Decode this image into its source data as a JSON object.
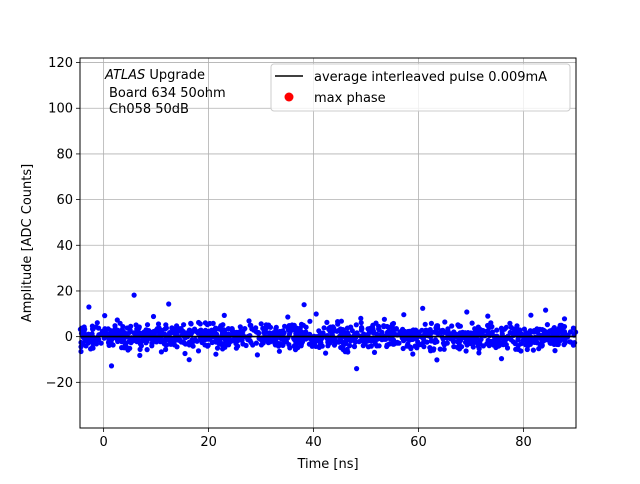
{
  "chart_data": {
    "type": "scatter",
    "title": "",
    "xlabel": "Time [ns]",
    "ylabel": "Amplitude [ADC Counts]",
    "xlim": [
      -4.5,
      90
    ],
    "ylim": [
      -40,
      122
    ],
    "xticks": [
      0,
      20,
      40,
      60,
      80
    ],
    "yticks": [
      -20,
      0,
      20,
      40,
      60,
      80,
      100,
      120
    ],
    "grid": true,
    "legend_position": "top-right",
    "annotation": {
      "italic": "ATLAS",
      "line1_rest": " Upgrade",
      "line2": "Board 634 50ohm",
      "line3": "Ch058 50dB"
    },
    "series": [
      {
        "name": "average interleaved pulse 0.009mA",
        "kind": "line",
        "color": "#000000",
        "x": [
          -4.5,
          0,
          10,
          20,
          30,
          40,
          50,
          60,
          70,
          80,
          90
        ],
        "y": [
          0,
          0,
          0,
          0,
          0,
          0,
          0,
          0,
          0,
          0,
          0
        ]
      },
      {
        "name": "max phase",
        "kind": "marker",
        "color": "#ff0000",
        "points": []
      },
      {
        "name": "",
        "kind": "scatter",
        "color": "#0000ff",
        "description_range": [
          -10,
          10
        ],
        "points": [
          [
            -4.3,
            -6.5
          ],
          [
            -3.6,
            3.2
          ],
          [
            -2.8,
            13
          ],
          [
            -2.1,
            -4.6
          ],
          [
            -1.2,
            6.1
          ],
          [
            0.2,
            9.2
          ],
          [
            1.5,
            -12.8
          ],
          [
            2.6,
            7.3
          ],
          [
            4.1,
            -3.9
          ],
          [
            5.8,
            18.2
          ],
          [
            6.9,
            -8.2
          ],
          [
            8.3,
            2.1
          ],
          [
            9.5,
            8.8
          ],
          [
            11.0,
            -6.7
          ],
          [
            12.4,
            14.3
          ],
          [
            13.9,
            4.7
          ],
          [
            15.5,
            -7.4
          ],
          [
            16.3,
            -10.1
          ],
          [
            18.1,
            6.2
          ],
          [
            19.8,
            -4.2
          ],
          [
            21.4,
            -7.7
          ],
          [
            23.0,
            9.3
          ],
          [
            25.2,
            -3.0
          ],
          [
            27.7,
            6.9
          ],
          [
            29.3,
            -8.0
          ],
          [
            31.8,
            4.1
          ],
          [
            33.5,
            -6.4
          ],
          [
            35.1,
            8.6
          ],
          [
            37.0,
            -4.8
          ],
          [
            38.2,
            14.0
          ],
          [
            40.5,
            9.9
          ],
          [
            42.3,
            -7.2
          ],
          [
            44.6,
            5.5
          ],
          [
            46.4,
            -5.6
          ],
          [
            48.2,
            -14.0
          ],
          [
            49.0,
            8.0
          ],
          [
            51.6,
            -6.9
          ],
          [
            53.5,
            7.6
          ],
          [
            55.3,
            -3.3
          ],
          [
            57.2,
            9.6
          ],
          [
            58.9,
            -7.6
          ],
          [
            60.8,
            12.4
          ],
          [
            62.3,
            -6.2
          ],
          [
            63.5,
            -10.2
          ],
          [
            65.0,
            6.4
          ],
          [
            67.4,
            -4.7
          ],
          [
            69.2,
            10.8
          ],
          [
            71.5,
            -7.1
          ],
          [
            73.2,
            9.0
          ],
          [
            75.8,
            -9.6
          ],
          [
            77.4,
            5.8
          ],
          [
            79.5,
            -6.3
          ],
          [
            81.4,
            9.4
          ],
          [
            82.9,
            -5.3
          ],
          [
            84.2,
            11.6
          ],
          [
            86.0,
            -6.1
          ],
          [
            87.8,
            7.8
          ],
          [
            89.5,
            -3.7
          ]
        ]
      }
    ]
  }
}
